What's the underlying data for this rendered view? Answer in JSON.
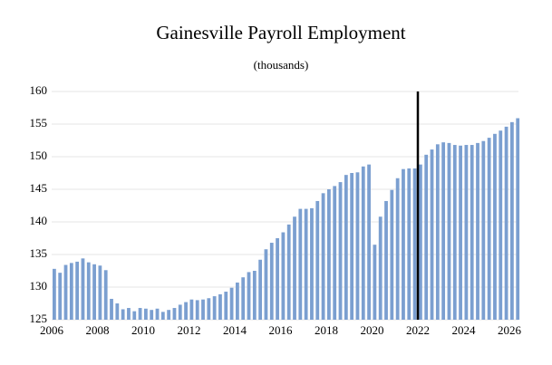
{
  "chart_data": {
    "type": "bar",
    "title": "Gainesville Payroll Employment",
    "subtitle": "(thousands)",
    "x": [
      2006,
      2006.25,
      2006.5,
      2006.75,
      2007,
      2007.25,
      2007.5,
      2007.75,
      2008,
      2008.25,
      2008.5,
      2008.75,
      2009,
      2009.25,
      2009.5,
      2009.75,
      2010,
      2010.25,
      2010.5,
      2010.75,
      2011,
      2011.25,
      2011.5,
      2011.75,
      2012,
      2012.25,
      2012.5,
      2012.75,
      2013,
      2013.25,
      2013.5,
      2013.75,
      2014,
      2014.25,
      2014.5,
      2014.75,
      2015,
      2015.25,
      2015.5,
      2015.75,
      2016,
      2016.25,
      2016.5,
      2016.75,
      2017,
      2017.25,
      2017.5,
      2017.75,
      2018,
      2018.25,
      2018.5,
      2018.75,
      2019,
      2019.25,
      2019.5,
      2019.75,
      2020,
      2020.25,
      2020.5,
      2020.75,
      2021,
      2021.25,
      2021.5,
      2021.75,
      2022,
      2022.25,
      2022.5,
      2022.75,
      2023,
      2023.25,
      2023.5,
      2023.75,
      2024,
      2024.25,
      2024.5,
      2024.75,
      2025,
      2025.25,
      2025.5,
      2025.75,
      2026,
      2026.25
    ],
    "values": [
      132.8,
      132.2,
      133.4,
      133.7,
      133.9,
      134.4,
      133.8,
      133.5,
      133.3,
      132.6,
      128.2,
      127.5,
      126.6,
      126.8,
      126.3,
      126.8,
      126.7,
      126.5,
      126.7,
      126.2,
      126.5,
      126.8,
      127.3,
      127.7,
      128.1,
      128.0,
      128.1,
      128.3,
      128.6,
      128.9,
      129.3,
      129.9,
      130.7,
      131.5,
      132.3,
      132.5,
      134.2,
      135.8,
      136.8,
      137.5,
      138.4,
      139.6,
      140.8,
      142.0,
      142.0,
      142.1,
      143.2,
      144.4,
      145.0,
      145.5,
      146.1,
      147.2,
      147.5,
      147.6,
      148.5,
      148.8,
      136.5,
      140.8,
      143.2,
      144.9,
      146.7,
      148.1,
      148.2,
      148.2,
      148.8,
      150.3,
      151.1,
      151.9,
      152.2,
      152.1,
      151.8,
      151.7,
      151.8,
      151.8,
      152.1,
      152.4,
      152.9,
      153.5,
      154.0,
      154.6,
      155.3,
      155.9
    ],
    "color": "#7b9fd0",
    "xlim": [
      2006,
      2026
    ],
    "xticks": [
      2006,
      2008,
      2010,
      2012,
      2014,
      2016,
      2018,
      2020,
      2022,
      2024,
      2026
    ],
    "ylim": [
      125,
      160
    ],
    "yticks": [
      125,
      130,
      135,
      140,
      145,
      150,
      155,
      160
    ],
    "grid": true,
    "vline": 2022
  }
}
